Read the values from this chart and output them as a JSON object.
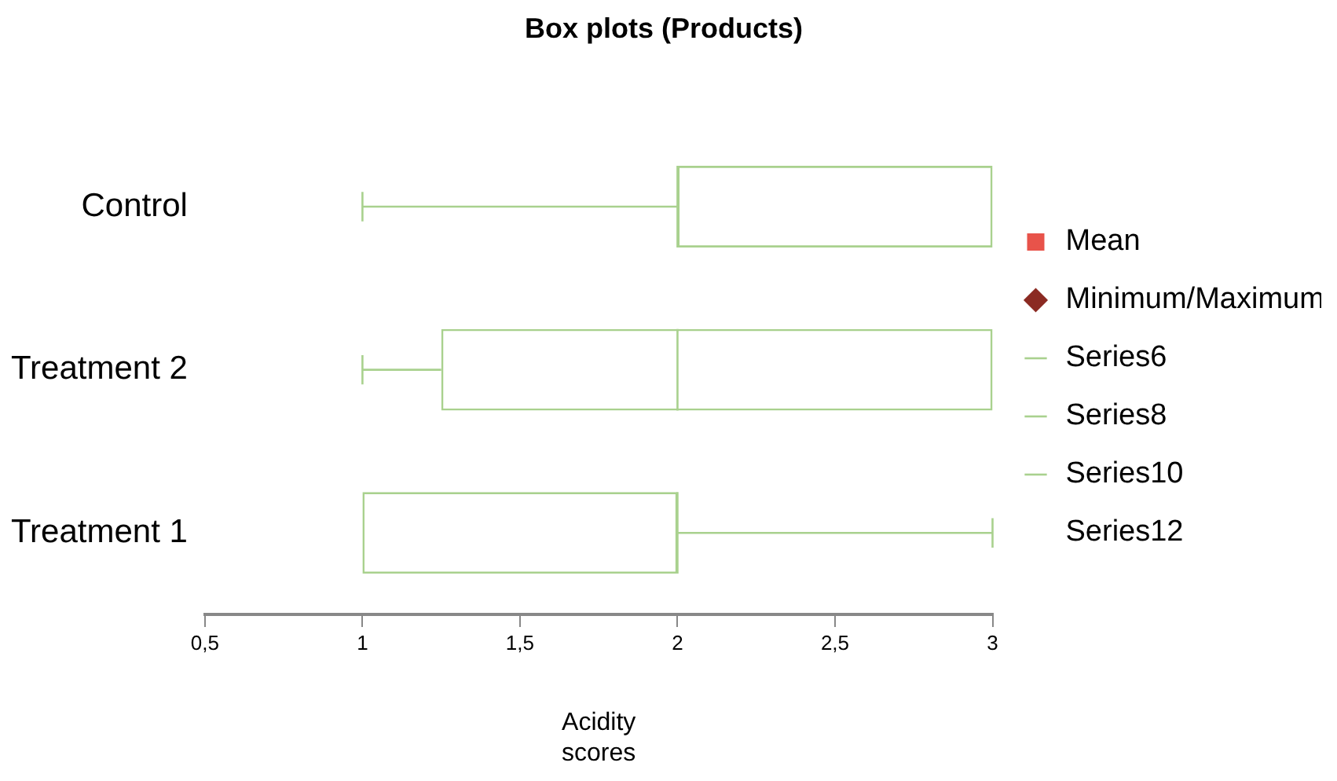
{
  "chart_data": {
    "type": "box",
    "title": "Box plots (Products)",
    "xlabel": "Acidity scores",
    "orientation": "horizontal",
    "categories": [
      "Control",
      "Treatment 2",
      "Treatment 1"
    ],
    "xlim": [
      0.5,
      3
    ],
    "xticks": [
      {
        "value": 0.5,
        "label": "0,5"
      },
      1,
      {
        "value": 1.5,
        "label": "1,5"
      },
      2,
      {
        "value": 2.5,
        "label": "2,5"
      },
      3
    ],
    "grid": false,
    "legend": "right",
    "series": [
      {
        "color": "#a9d18e",
        "boxes": [
          {
            "low": 1,
            "q1": 2,
            "median": 2,
            "q3": 3,
            "high": 3
          },
          {
            "low": 1,
            "q1": 1.25,
            "median": 2,
            "q3": 3,
            "high": 3
          },
          {
            "low": 1,
            "q1": 1,
            "median": 2,
            "q3": 2,
            "high": 3
          }
        ]
      },
      {
        "type": "scatter",
        "name": "Mean",
        "color": "#e8534a",
        "marker": "square",
        "values": [
          null,
          null,
          null
        ]
      },
      {
        "type": "scatter",
        "name": "Minimum/Maximum",
        "color": "#8b2a22",
        "marker": "diamond",
        "values": [
          null,
          null,
          null
        ]
      },
      {
        "type": "line",
        "name": "Series6",
        "color": "#a9d18e",
        "values": [
          null,
          null,
          null
        ]
      },
      {
        "type": "line",
        "name": "Series8",
        "color": "#a9d18e",
        "values": [
          null,
          null,
          null
        ]
      },
      {
        "type": "line",
        "name": "Series10",
        "color": "#a9d18e",
        "values": [
          null,
          null,
          null
        ]
      },
      {
        "type": "line",
        "name": "Series12",
        "values": [
          null,
          null,
          null
        ]
      }
    ]
  }
}
